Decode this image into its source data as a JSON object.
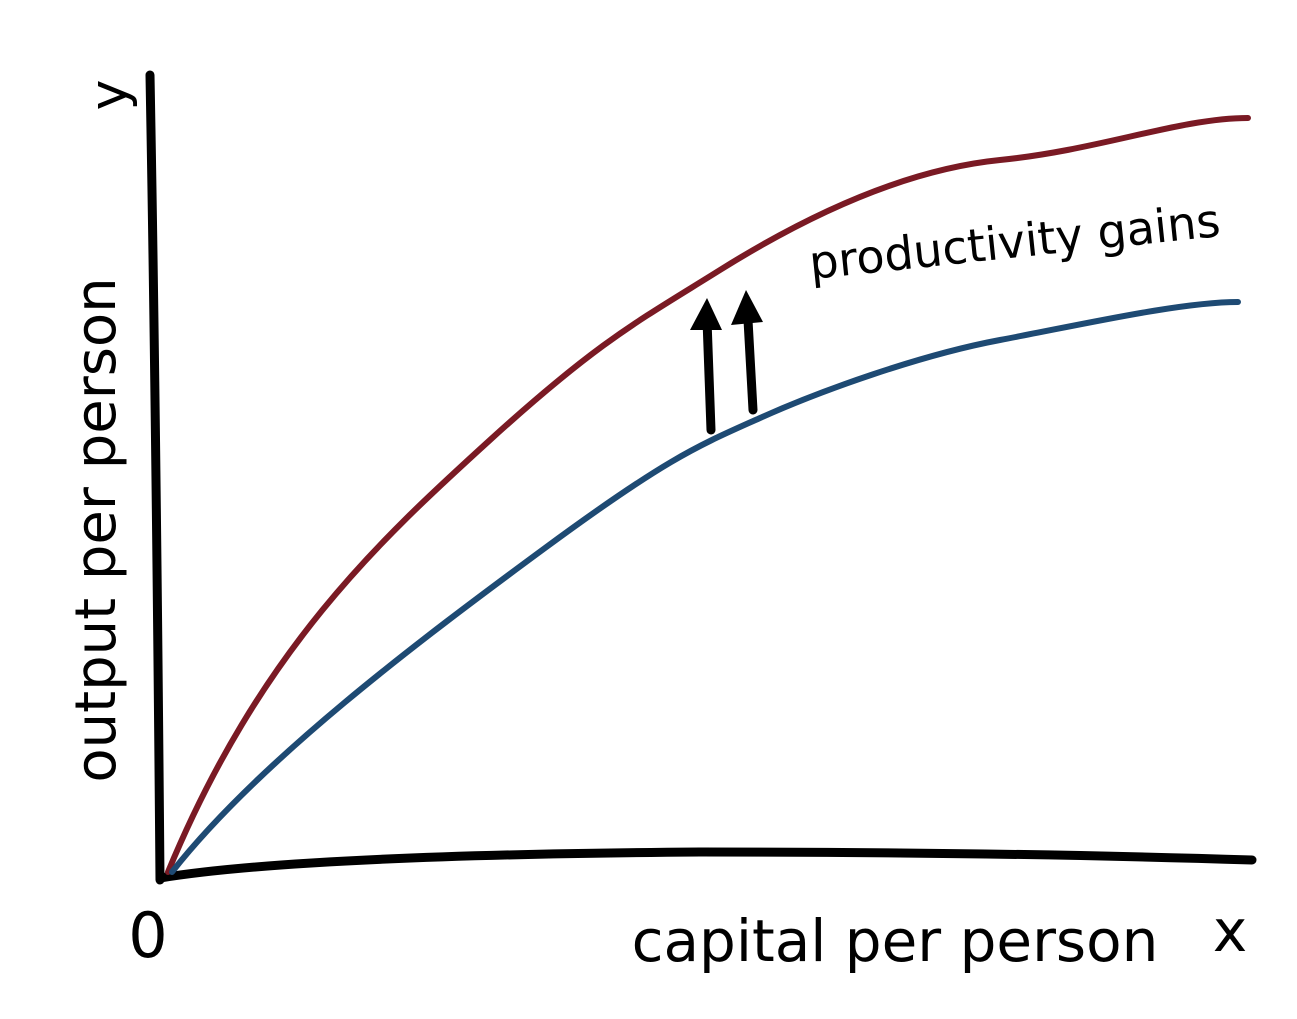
{
  "axes": {
    "y_label": "y",
    "y_title": "output per person",
    "origin": "0",
    "x_title": "capital per person",
    "x_label": "x"
  },
  "annotation": "productivity gains"
}
